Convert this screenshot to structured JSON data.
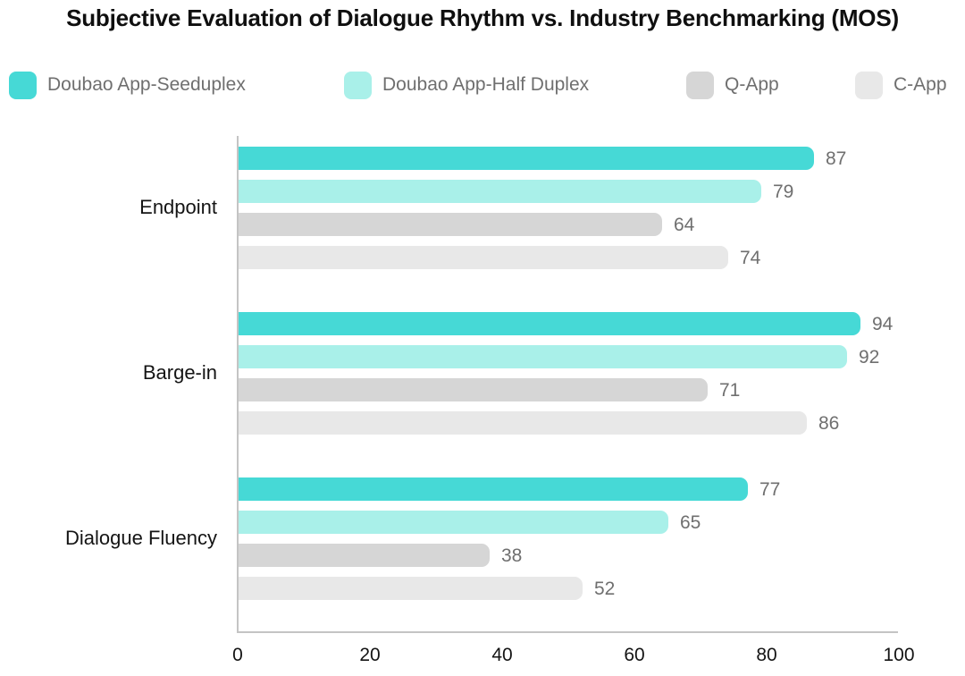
{
  "title": "Subjective Evaluation of Dialogue Rhythm vs. Industry Benchmarking (MOS)",
  "legend": {
    "items": [
      {
        "label": "Doubao App-Seeduplex",
        "color": "#46d9d6"
      },
      {
        "label": "Doubao App-Half Duplex",
        "color": "#a9f0e9"
      },
      {
        "label": "Q-App",
        "color": "#d6d6d6"
      },
      {
        "label": "C-App",
        "color": "#e8e8e8"
      }
    ]
  },
  "chart_data": {
    "type": "bar",
    "orientation": "horizontal",
    "title": "Subjective Evaluation of Dialogue Rhythm vs. Industry Benchmarking (MOS)",
    "categories": [
      "Endpoint",
      "Barge-in",
      "Dialogue Fluency"
    ],
    "series": [
      {
        "name": "Doubao App-Seeduplex",
        "color": "#46d9d6",
        "values": [
          87,
          94,
          77
        ]
      },
      {
        "name": "Doubao App-Half Duplex",
        "color": "#a9f0e9",
        "values": [
          79,
          92,
          65
        ]
      },
      {
        "name": "Q-App",
        "color": "#d6d6d6",
        "values": [
          64,
          71,
          38
        ]
      },
      {
        "name": "C-App",
        "color": "#e8e8e8",
        "values": [
          74,
          86,
          52
        ]
      }
    ],
    "xlim": [
      0,
      100
    ],
    "xticks": [
      0,
      20,
      40,
      60,
      80,
      100
    ],
    "value_labels": true,
    "grid": false,
    "legend_position": "top"
  },
  "colors": {
    "text_primary": "#141414",
    "text_secondary": "#6f6f6f",
    "axis": "#c4c4c4",
    "background": "#ffffff"
  }
}
